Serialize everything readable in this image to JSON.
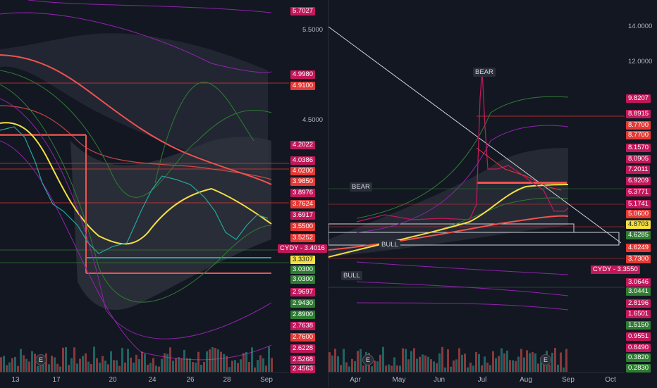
{
  "left_chart": {
    "ticker_label": "CYDY - 3.4016",
    "x_labels": [
      "13",
      "17",
      "20",
      "24",
      "26",
      "28",
      "Sep"
    ],
    "price_labels": [
      {
        "text": "5.7027",
        "color": "#c2185b"
      },
      {
        "text": "4.9980",
        "color": "#c2185b"
      },
      {
        "text": "4.9100",
        "color": "#e53935"
      },
      {
        "text": "4.2022",
        "color": "#c2185b"
      },
      {
        "text": "4.0386",
        "color": "#c2185b"
      },
      {
        "text": "4.0200",
        "color": "#e53935"
      },
      {
        "text": "3.9850",
        "color": "#e53935"
      },
      {
        "text": "3.8976",
        "color": "#c2185b"
      },
      {
        "text": "3.7624",
        "color": "#e53935"
      },
      {
        "text": "3.6917",
        "color": "#c2185b"
      },
      {
        "text": "3.5500",
        "color": "#e53935"
      },
      {
        "text": "3.5252",
        "color": "#e53935"
      },
      {
        "text": "3.3307",
        "color": "#f5e042"
      },
      {
        "text": "3.0300",
        "color": "#2e7d32"
      },
      {
        "text": "3.0300",
        "color": "#2e7d32"
      },
      {
        "text": "2.9697",
        "color": "#c2185b"
      },
      {
        "text": "2.9430",
        "color": "#2e7d32"
      },
      {
        "text": "2.8900",
        "color": "#2e7d32"
      },
      {
        "text": "2.7638",
        "color": "#c2185b"
      },
      {
        "text": "2.7600",
        "color": "#e53935"
      },
      {
        "text": "2.6228",
        "color": "#c2185b"
      },
      {
        "text": "2.5268",
        "color": "#c2185b"
      },
      {
        "text": "2.4563",
        "color": "#c2185b"
      }
    ]
  },
  "right_chart": {
    "ticker_label": "CYDY - 3.3550",
    "x_labels": [
      "Apr",
      "May",
      "Jun",
      "Jul",
      "Aug",
      "Sep",
      "Oct"
    ],
    "axis_labels": [
      "14.0000",
      "12.0000",
      "5.5000",
      "4.5000"
    ],
    "tags": {
      "bear_top": "BEAR",
      "bear_mid": "BEAR",
      "bull_mid": "BULL",
      "bull_low": "BULL"
    },
    "price_labels": [
      {
        "text": "9.8207",
        "color": "#c2185b"
      },
      {
        "text": "8.8915",
        "color": "#c2185b"
      },
      {
        "text": "8.7700",
        "color": "#e53935"
      },
      {
        "text": "8.7700",
        "color": "#e53935"
      },
      {
        "text": "8.1570",
        "color": "#c2185b"
      },
      {
        "text": "8.0905",
        "color": "#c2185b"
      },
      {
        "text": "7.2011",
        "color": "#c2185b"
      },
      {
        "text": "6.9209",
        "color": "#c2185b"
      },
      {
        "text": "6.3771",
        "color": "#c2185b"
      },
      {
        "text": "5.1741",
        "color": "#c2185b"
      },
      {
        "text": "5.0600",
        "color": "#e53935"
      },
      {
        "text": "4.8703",
        "color": "#f5e042"
      },
      {
        "text": "4.6285",
        "color": "#2e7d32"
      },
      {
        "text": "4.6249",
        "color": "#e53935"
      },
      {
        "text": "3.7300",
        "color": "#e53935"
      },
      {
        "text": "3.0646",
        "color": "#c2185b"
      },
      {
        "text": "3.0441",
        "color": "#2e7d32"
      },
      {
        "text": "2.8196",
        "color": "#c2185b"
      },
      {
        "text": "1.6501",
        "color": "#c2185b"
      },
      {
        "text": "1.5150",
        "color": "#2e7d32"
      },
      {
        "text": "0.9551",
        "color": "#c2185b"
      },
      {
        "text": "0.8490",
        "color": "#c2185b"
      },
      {
        "text": "0.3820",
        "color": "#2e7d32"
      },
      {
        "text": "0.2830",
        "color": "#2e7d32"
      }
    ]
  },
  "event_marker": "E"
}
